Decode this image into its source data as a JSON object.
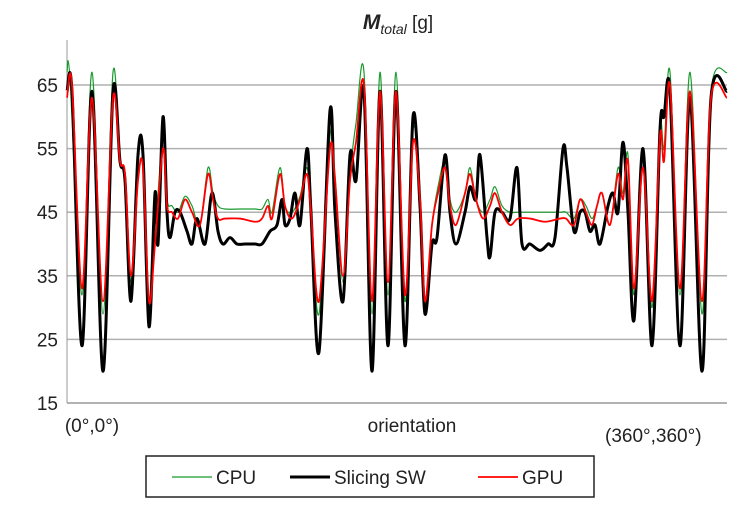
{
  "chart_data": {
    "type": "line",
    "title": {
      "main": "M",
      "subscript": "total",
      "unit": " [g]"
    },
    "xlabel": "orientation",
    "x_start_label": "(0°,0°)",
    "x_end_label": "(360°,360°)",
    "xlim": [
      0,
      660
    ],
    "ylim": [
      15,
      72
    ],
    "yticks": [
      "15",
      "25",
      "35",
      "45",
      "55",
      "65"
    ],
    "grid": "horizontal",
    "legend_placement": "bottom",
    "series": [
      {
        "name": "CPU",
        "color": "#1a9a2e",
        "width": 1.2,
        "points": [
          [
            0,
            67
          ],
          [
            3,
            66
          ],
          [
            15,
            32
          ],
          [
            25,
            67
          ],
          [
            36,
            29
          ],
          [
            46,
            67
          ],
          [
            53,
            53
          ],
          [
            58,
            51
          ],
          [
            64,
            34
          ],
          [
            71,
            54
          ],
          [
            76,
            53
          ],
          [
            82,
            29
          ],
          [
            88,
            41
          ],
          [
            96,
            57
          ],
          [
            100,
            47
          ],
          [
            105,
            46
          ],
          [
            111,
            45
          ],
          [
            118,
            47.5
          ],
          [
            125,
            46
          ],
          [
            133,
            43
          ],
          [
            141,
            52
          ],
          [
            146,
            48
          ],
          [
            151,
            46
          ],
          [
            158,
            45.5
          ],
          [
            173,
            45.5
          ],
          [
            188,
            45.5
          ],
          [
            195,
            45.5
          ],
          [
            201,
            47
          ],
          [
            205,
            45
          ],
          [
            213,
            52
          ],
          [
            218,
            46
          ],
          [
            225,
            45
          ],
          [
            233,
            47.5
          ],
          [
            240,
            52
          ],
          [
            244,
            45
          ],
          [
            252,
            29
          ],
          [
            263,
            57
          ],
          [
            268,
            51
          ],
          [
            276,
            34
          ],
          [
            283,
            51
          ],
          [
            289,
            59
          ],
          [
            297,
            67
          ],
          [
            305,
            29
          ],
          [
            313,
            67
          ],
          [
            321,
            32
          ],
          [
            329,
            67
          ],
          [
            338,
            31
          ],
          [
            346,
            58
          ],
          [
            353,
            48
          ],
          [
            358,
            30
          ],
          [
            365,
            43
          ],
          [
            371,
            49
          ],
          [
            378,
            53
          ],
          [
            383,
            47
          ],
          [
            389,
            45
          ],
          [
            398,
            48
          ],
          [
            403,
            52
          ],
          [
            409,
            47
          ],
          [
            416,
            45
          ],
          [
            423,
            47
          ],
          [
            428,
            49
          ],
          [
            435,
            46
          ],
          [
            443,
            45
          ],
          [
            451,
            45
          ],
          [
            463,
            45
          ],
          [
            478,
            45
          ],
          [
            493,
            45
          ],
          [
            499,
            45
          ],
          [
            507,
            44
          ],
          [
            513,
            47
          ],
          [
            519,
            46
          ],
          [
            525,
            44
          ],
          [
            530,
            46
          ],
          [
            535,
            48
          ],
          [
            543,
            43
          ],
          [
            551,
            52
          ],
          [
            556,
            48
          ],
          [
            561,
            54
          ],
          [
            567,
            32
          ],
          [
            576,
            55
          ],
          [
            585,
            30
          ],
          [
            593,
            58
          ],
          [
            597,
            55
          ],
          [
            603,
            67
          ],
          [
            613,
            32
          ],
          [
            623,
            67
          ],
          [
            635,
            29
          ],
          [
            644,
            64
          ],
          [
            660,
            67
          ]
        ]
      },
      {
        "name": "Slicing SW",
        "color": "#000000",
        "width": 3,
        "points": [
          [
            0,
            64
          ],
          [
            5,
            64
          ],
          [
            15,
            24
          ],
          [
            25,
            64
          ],
          [
            36,
            20
          ],
          [
            46,
            64
          ],
          [
            53,
            53
          ],
          [
            58,
            50
          ],
          [
            64,
            31
          ],
          [
            71,
            54
          ],
          [
            76,
            54
          ],
          [
            82,
            27
          ],
          [
            88,
            48
          ],
          [
            91,
            40
          ],
          [
            96,
            60
          ],
          [
            100,
            45
          ],
          [
            103,
            41
          ],
          [
            108,
            45
          ],
          [
            113,
            45
          ],
          [
            120,
            42
          ],
          [
            125,
            40
          ],
          [
            130,
            44
          ],
          [
            138,
            40
          ],
          [
            145,
            48
          ],
          [
            151,
            42
          ],
          [
            156,
            40
          ],
          [
            163,
            41
          ],
          [
            170,
            40
          ],
          [
            178,
            40
          ],
          [
            188,
            40
          ],
          [
            195,
            40
          ],
          [
            203,
            42
          ],
          [
            210,
            43
          ],
          [
            215,
            47
          ],
          [
            218,
            43
          ],
          [
            223,
            44
          ],
          [
            228,
            48
          ],
          [
            233,
            43
          ],
          [
            240,
            55
          ],
          [
            244,
            45
          ],
          [
            252,
            23
          ],
          [
            263,
            61
          ],
          [
            268,
            45
          ],
          [
            276,
            31
          ],
          [
            283,
            54
          ],
          [
            289,
            50
          ],
          [
            297,
            64
          ],
          [
            305,
            20
          ],
          [
            313,
            64
          ],
          [
            321,
            24
          ],
          [
            329,
            64
          ],
          [
            338,
            24
          ],
          [
            346,
            60
          ],
          [
            353,
            46
          ],
          [
            358,
            29
          ],
          [
            365,
            40
          ],
          [
            370,
            41
          ],
          [
            378,
            54
          ],
          [
            383,
            45
          ],
          [
            389,
            40
          ],
          [
            398,
            45
          ],
          [
            403,
            49
          ],
          [
            409,
            47
          ],
          [
            413,
            54
          ],
          [
            420,
            41
          ],
          [
            423,
            38
          ],
          [
            428,
            45
          ],
          [
            435,
            45
          ],
          [
            443,
            44
          ],
          [
            450,
            52
          ],
          [
            455,
            40
          ],
          [
            463,
            40
          ],
          [
            473,
            39
          ],
          [
            481,
            40
          ],
          [
            488,
            41
          ],
          [
            496,
            55
          ],
          [
            500,
            52
          ],
          [
            507,
            42
          ],
          [
            513,
            45
          ],
          [
            518,
            45
          ],
          [
            523,
            42
          ],
          [
            528,
            43
          ],
          [
            533,
            40
          ],
          [
            541,
            46
          ],
          [
            546,
            48
          ],
          [
            551,
            45
          ],
          [
            556,
            56
          ],
          [
            561,
            45
          ],
          [
            567,
            28
          ],
          [
            576,
            55
          ],
          [
            585,
            24
          ],
          [
            593,
            58
          ],
          [
            597,
            60
          ],
          [
            603,
            64
          ],
          [
            613,
            24
          ],
          [
            623,
            63
          ],
          [
            635,
            20
          ],
          [
            644,
            63
          ],
          [
            660,
            64
          ]
        ]
      },
      {
        "name": "GPU",
        "color": "#ff0000",
        "width": 1.8,
        "points": [
          [
            0,
            63
          ],
          [
            5,
            65
          ],
          [
            15,
            33
          ],
          [
            25,
            63
          ],
          [
            36,
            31
          ],
          [
            46,
            63
          ],
          [
            53,
            53
          ],
          [
            58,
            51
          ],
          [
            64,
            35
          ],
          [
            71,
            50
          ],
          [
            76,
            52
          ],
          [
            82,
            31
          ],
          [
            88,
            40
          ],
          [
            96,
            55
          ],
          [
            100,
            46
          ],
          [
            105,
            45
          ],
          [
            111,
            44
          ],
          [
            118,
            47
          ],
          [
            125,
            45
          ],
          [
            133,
            43
          ],
          [
            141,
            51
          ],
          [
            146,
            47
          ],
          [
            151,
            44
          ],
          [
            158,
            44
          ],
          [
            173,
            44
          ],
          [
            188,
            43.5
          ],
          [
            195,
            44
          ],
          [
            201,
            46
          ],
          [
            205,
            44
          ],
          [
            213,
            51
          ],
          [
            218,
            46
          ],
          [
            225,
            44
          ],
          [
            233,
            47
          ],
          [
            240,
            51
          ],
          [
            244,
            45
          ],
          [
            252,
            31
          ],
          [
            263,
            55
          ],
          [
            268,
            50
          ],
          [
            276,
            35
          ],
          [
            283,
            50
          ],
          [
            289,
            56
          ],
          [
            297,
            65
          ],
          [
            305,
            31
          ],
          [
            313,
            64
          ],
          [
            321,
            34
          ],
          [
            329,
            64
          ],
          [
            338,
            32
          ],
          [
            346,
            56
          ],
          [
            353,
            47
          ],
          [
            358,
            31
          ],
          [
            365,
            43
          ],
          [
            371,
            48
          ],
          [
            378,
            52
          ],
          [
            383,
            46
          ],
          [
            389,
            43
          ],
          [
            398,
            48
          ],
          [
            403,
            51
          ],
          [
            409,
            47
          ],
          [
            416,
            44
          ],
          [
            423,
            46
          ],
          [
            428,
            48
          ],
          [
            435,
            45
          ],
          [
            443,
            43
          ],
          [
            451,
            44
          ],
          [
            463,
            44
          ],
          [
            478,
            43.5
          ],
          [
            493,
            44
          ],
          [
            499,
            44
          ],
          [
            507,
            43
          ],
          [
            513,
            47
          ],
          [
            519,
            45
          ],
          [
            525,
            43
          ],
          [
            530,
            46
          ],
          [
            535,
            48
          ],
          [
            543,
            43
          ],
          [
            551,
            51
          ],
          [
            556,
            47
          ],
          [
            561,
            53
          ],
          [
            567,
            33
          ],
          [
            576,
            52
          ],
          [
            585,
            31
          ],
          [
            593,
            57
          ],
          [
            597,
            53
          ],
          [
            603,
            65
          ],
          [
            613,
            33
          ],
          [
            623,
            64
          ],
          [
            635,
            31
          ],
          [
            644,
            63
          ],
          [
            660,
            63
          ]
        ]
      }
    ]
  }
}
